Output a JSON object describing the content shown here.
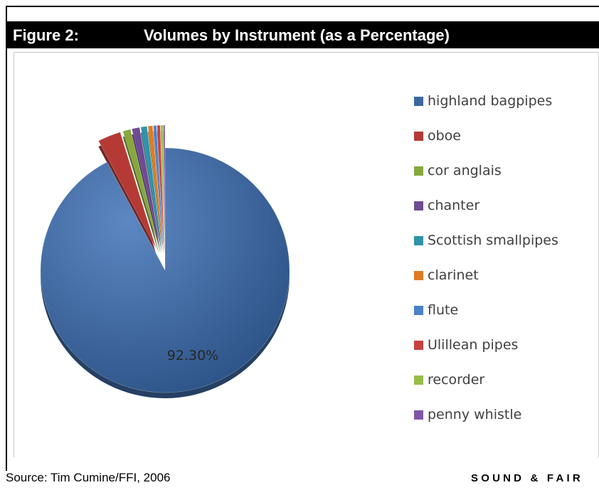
{
  "header": {
    "figure_label": "Figure 2:",
    "title": "Volumes by Instrument (as a Percentage)"
  },
  "chart_data": {
    "type": "pie",
    "title": "Volumes by Instrument (as a Percentage)",
    "categories": [
      "highland bagpipes",
      "oboe",
      "cor anglais",
      "chanter",
      "Scottish smallpipes",
      "clarinet",
      "flute",
      "Ulillean pipes",
      "recorder",
      "penny whistle"
    ],
    "values": [
      92.3,
      3.0,
      1.0,
      1.0,
      0.8,
      0.6,
      0.4,
      0.4,
      0.3,
      0.2
    ],
    "colors": [
      "#3b67a0",
      "#b53a36",
      "#86a83c",
      "#6e4b92",
      "#2f93a9",
      "#de7c22",
      "#4a82c8",
      "#c9413f",
      "#98bd48",
      "#7e58a6"
    ],
    "data_labels": [
      "92.30%"
    ],
    "exploded": "all slices except highland bagpipes",
    "legend_position": "right"
  },
  "footer": {
    "source": "Source: Tim Cumine/FFI, 2006",
    "brand": "SOUND & FAIR"
  }
}
